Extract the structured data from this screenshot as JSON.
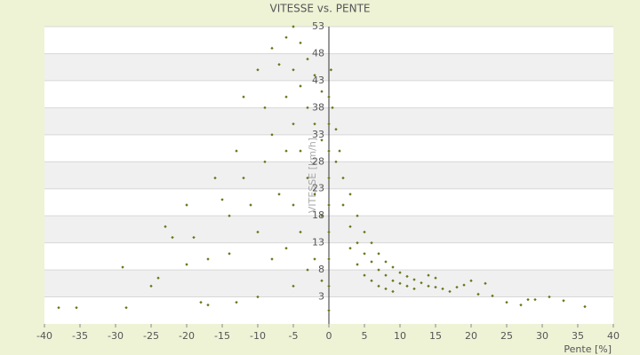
{
  "chart_data": {
    "type": "scatter",
    "title": "VITESSE vs. PENTE",
    "x_label": "Pente [%]",
    "y_label": "VITESSE [km/h]",
    "xlim": [
      -40,
      40
    ],
    "xticks": [
      -40,
      -35,
      -30,
      -25,
      -20,
      -15,
      -10,
      -5,
      0,
      5,
      10,
      15,
      20,
      25,
      30,
      35,
      40
    ],
    "ylim": [
      -2,
      53
    ],
    "yticks": [
      3,
      8,
      13,
      18,
      23,
      28,
      33,
      38,
      43,
      48,
      53
    ],
    "grid": true,
    "x": [
      -38,
      -35.5,
      -28.5,
      -29,
      -25,
      -24,
      -23,
      -22,
      -20,
      -19,
      -17,
      -16,
      -17,
      -15,
      -14,
      -13,
      -14,
      -12,
      -12,
      -11,
      -10,
      -10,
      -9,
      -9,
      -8,
      -8,
      -8,
      -7,
      -7,
      -6,
      -6,
      -6,
      -6,
      -5,
      -5,
      -5,
      -5,
      -5,
      -4,
      -4,
      -4,
      -4,
      -3,
      -3,
      -3,
      -3,
      -2,
      -2,
      -2,
      -2,
      -1,
      -1,
      -1,
      -1,
      -10,
      -13,
      -18,
      -20,
      0.3,
      0.5,
      1,
      1,
      1.5,
      2,
      2,
      3,
      3,
      3,
      4,
      4,
      4,
      5,
      5,
      5,
      6,
      6,
      6,
      7,
      7,
      7,
      8,
      8,
      8,
      9,
      9,
      9,
      10,
      10,
      11,
      11,
      12,
      12,
      13,
      14,
      14,
      15,
      15,
      16,
      17,
      18,
      19,
      20,
      21,
      22,
      23,
      25,
      27,
      28,
      29,
      31,
      33,
      36,
      0,
      0,
      0,
      0,
      0,
      0,
      0,
      0,
      0
    ],
    "series": [
      {
        "color": "#66751a",
        "values": [
          1,
          1,
          1,
          8.5,
          5,
          6.5,
          16,
          14,
          20,
          14,
          10,
          25,
          1.5,
          21,
          18,
          30,
          11,
          40,
          25,
          20,
          45,
          15,
          38,
          28,
          49,
          33,
          10,
          46,
          22,
          51,
          40,
          30,
          12,
          53,
          45,
          35,
          20,
          5,
          50,
          42,
          30,
          15,
          47,
          38,
          25,
          8,
          44,
          35,
          22,
          10,
          41,
          32,
          18,
          6,
          3,
          2,
          2,
          9,
          45,
          38,
          34,
          28,
          30,
          25,
          20,
          22,
          16,
          12,
          18,
          13,
          9,
          15,
          11,
          7,
          13,
          9.5,
          6,
          11,
          8,
          5,
          9.5,
          7,
          4.5,
          8.5,
          6,
          4,
          7.5,
          5.5,
          6.8,
          5,
          6.2,
          4.5,
          5.6,
          5,
          7,
          4.8,
          6.5,
          4.5,
          4,
          4.8,
          5.2,
          6,
          3.5,
          5.5,
          3.2,
          2,
          1.5,
          2.5,
          2.5,
          3,
          2.3,
          1.2,
          0.5,
          5,
          10,
          15,
          20,
          25,
          30,
          35,
          40
        ]
      }
    ]
  }
}
